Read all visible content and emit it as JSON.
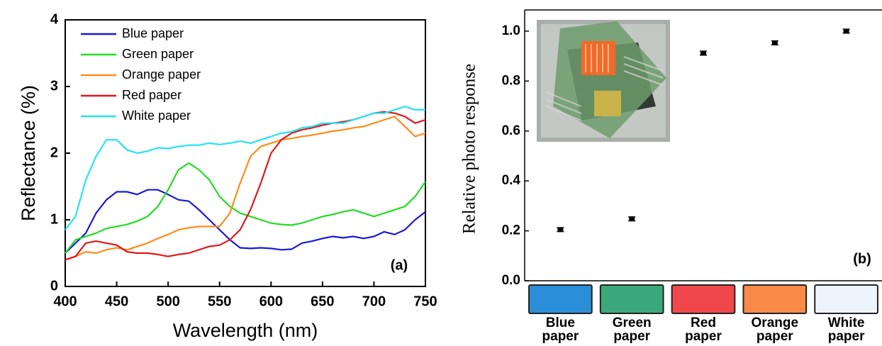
{
  "chart_data": [
    {
      "type": "line",
      "xlabel": "Wavelength (nm)",
      "ylabel": "Reflectance (%)",
      "annotation": "(a)",
      "x": [
        400,
        410,
        420,
        430,
        440,
        450,
        460,
        470,
        480,
        490,
        500,
        510,
        520,
        530,
        540,
        550,
        560,
        570,
        580,
        590,
        600,
        610,
        620,
        630,
        640,
        650,
        660,
        670,
        680,
        690,
        700,
        710,
        720,
        730,
        740,
        750
      ],
      "series": [
        {
          "name": "Blue paper",
          "color": "#1a1ad6",
          "values": [
            0.5,
            0.65,
            0.8,
            1.1,
            1.3,
            1.42,
            1.42,
            1.38,
            1.45,
            1.45,
            1.38,
            1.3,
            1.28,
            1.15,
            1.0,
            0.85,
            0.7,
            0.58,
            0.57,
            0.58,
            0.57,
            0.55,
            0.56,
            0.65,
            0.68,
            0.72,
            0.75,
            0.73,
            0.75,
            0.72,
            0.75,
            0.82,
            0.78,
            0.85,
            1.0,
            1.12
          ]
        },
        {
          "name": "Green paper",
          "color": "#22dd22",
          "values": [
            0.5,
            0.7,
            0.75,
            0.8,
            0.87,
            0.9,
            0.93,
            0.98,
            1.05,
            1.2,
            1.45,
            1.75,
            1.85,
            1.75,
            1.6,
            1.35,
            1.2,
            1.1,
            1.05,
            1.0,
            0.95,
            0.93,
            0.92,
            0.95,
            1.0,
            1.05,
            1.08,
            1.12,
            1.15,
            1.1,
            1.05,
            1.1,
            1.15,
            1.2,
            1.35,
            1.57
          ]
        },
        {
          "name": "Orange paper",
          "color": "#ff8c1a",
          "values": [
            0.4,
            0.45,
            0.52,
            0.5,
            0.55,
            0.58,
            0.55,
            0.6,
            0.65,
            0.72,
            0.78,
            0.85,
            0.88,
            0.9,
            0.9,
            0.9,
            1.1,
            1.55,
            1.95,
            2.1,
            2.15,
            2.2,
            2.22,
            2.25,
            2.27,
            2.3,
            2.33,
            2.35,
            2.38,
            2.4,
            2.45,
            2.5,
            2.55,
            2.4,
            2.25,
            2.3
          ]
        },
        {
          "name": "Red paper",
          "color": "#e0181d",
          "values": [
            0.4,
            0.45,
            0.65,
            0.68,
            0.65,
            0.62,
            0.52,
            0.5,
            0.5,
            0.48,
            0.45,
            0.48,
            0.5,
            0.55,
            0.6,
            0.62,
            0.7,
            0.85,
            1.15,
            1.55,
            2.0,
            2.2,
            2.3,
            2.35,
            2.38,
            2.42,
            2.45,
            2.47,
            2.5,
            2.55,
            2.6,
            2.62,
            2.6,
            2.55,
            2.45,
            2.5
          ]
        },
        {
          "name": "White paper",
          "color": "#22e5f0",
          "values": [
            0.85,
            1.05,
            1.6,
            1.95,
            2.2,
            2.2,
            2.05,
            2.0,
            2.03,
            2.08,
            2.07,
            2.1,
            2.12,
            2.12,
            2.15,
            2.13,
            2.15,
            2.18,
            2.15,
            2.2,
            2.25,
            2.3,
            2.32,
            2.38,
            2.4,
            2.45,
            2.45,
            2.45,
            2.5,
            2.55,
            2.6,
            2.6,
            2.65,
            2.7,
            2.65,
            2.65
          ]
        }
      ],
      "xlim": [
        400,
        750
      ],
      "xticks": [
        400,
        450,
        500,
        550,
        600,
        650,
        700,
        750
      ],
      "ylim": [
        0,
        4
      ],
      "yticks": [
        0,
        1,
        2,
        3,
        4
      ],
      "legend": "upper left"
    },
    {
      "type": "errorbar",
      "ylabel": "Relative photo response",
      "annotation": "(b)",
      "categories": [
        "Blue paper",
        "Green paper",
        "Red paper",
        "Orange paper",
        "White paper"
      ],
      "values": [
        0.205,
        0.248,
        0.912,
        0.953,
        1.0
      ],
      "errors": [
        0.008,
        0.008,
        0.008,
        0.008,
        0.008
      ],
      "swatch_colors": [
        "#2a8fd8",
        "#3aa87a",
        "#f0484a",
        "#f98a48",
        "#eef4fb"
      ],
      "ylim": [
        0,
        1.085
      ],
      "yticks": [
        {
          "value": 0,
          "label": "0.0"
        },
        0.2,
        0.4,
        0.6,
        0.8,
        {
          "value": 1,
          "label": "1.0"
        }
      ]
    }
  ]
}
